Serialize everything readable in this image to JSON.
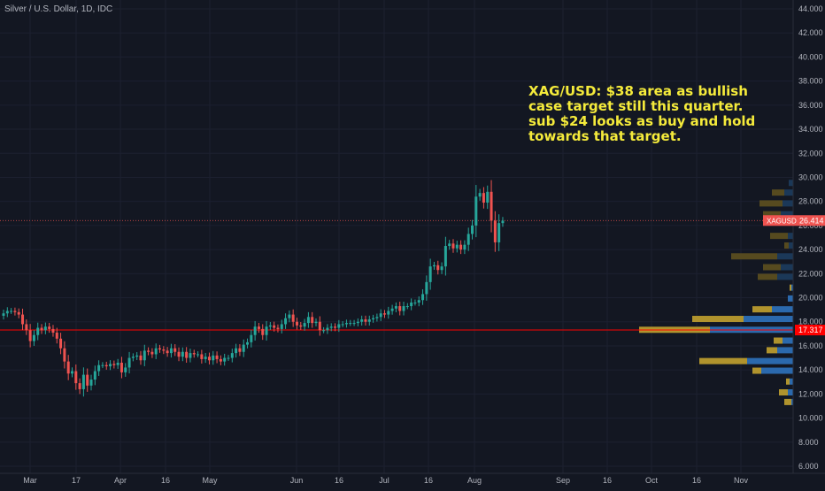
{
  "chart_data": {
    "type": "candlestick",
    "title": "Silver / U.S. Dollar, 1D, IDC",
    "annotation": "XAG/USD: $38 area as bullish case target still this quarter. sub $24 looks as buy and hold towards that target.",
    "ylim": [
      5.0,
      45.0
    ],
    "y_ticks": [
      "44.000",
      "42.000",
      "40.000",
      "38.000",
      "36.000",
      "34.000",
      "32.000",
      "30.000",
      "28.000",
      "26.000",
      "24.000",
      "22.000",
      "20.000",
      "18.000",
      "16.000",
      "14.000",
      "12.000",
      "10.000",
      "8.000",
      "6.000"
    ],
    "x_ticks": [
      "Mar",
      "17",
      "Apr",
      "16",
      "May",
      "Jun",
      "16",
      "Jul",
      "16",
      "Aug",
      "Sep",
      "16",
      "Oct",
      "16",
      "Nov"
    ],
    "price_label": {
      "symbol": "XAGUSD",
      "value": "26.414",
      "price": 26.414,
      "color": "#ef5350"
    },
    "level_label": {
      "value": "17.317",
      "price": 17.317,
      "color": "#ff0000"
    },
    "up_color": "#26a69a",
    "down_color": "#ef5350",
    "closes": [
      18.7,
      18.9,
      18.9,
      18.8,
      18.6,
      17.8,
      17.3,
      16.4,
      16.9,
      17.5,
      17.3,
      17.6,
      17.4,
      17.1,
      16.6,
      15.8,
      14.7,
      13.7,
      13.9,
      12.9,
      12.4,
      13.6,
      12.7,
      13.2,
      13.9,
      14.4,
      14.4,
      14.3,
      14.5,
      14.4,
      14.6,
      13.8,
      14.2,
      15.0,
      15.1,
      15.2,
      14.8,
      15.6,
      15.5,
      15.3,
      15.8,
      15.7,
      15.6,
      15.4,
      15.8,
      15.5,
      15.1,
      15.5,
      15.0,
      15.4,
      15.3,
      15.3,
      14.9,
      15.1,
      14.8,
      15.2,
      14.9,
      14.7,
      15.0,
      15.0,
      15.4,
      15.8,
      15.5,
      16.1,
      16.3,
      16.9,
      17.6,
      17.4,
      16.9,
      17.6,
      17.7,
      17.5,
      17.4,
      17.8,
      18.3,
      18.6,
      18.0,
      17.7,
      17.6,
      17.9,
      18.4,
      17.9,
      18.0,
      17.3,
      17.3,
      17.5,
      17.6,
      17.5,
      17.8,
      17.8,
      17.9,
      17.9,
      17.9,
      18.0,
      18.2,
      18.0,
      18.2,
      18.3,
      18.4,
      18.7,
      18.6,
      18.9,
      19.1,
      19.3,
      18.9,
      19.3,
      19.3,
      19.6,
      19.6,
      19.8,
      20.3,
      21.3,
      22.6,
      22.7,
      22.3,
      22.6,
      24.3,
      24.5,
      24.1,
      24.4,
      24.0,
      24.4,
      25.3,
      26.0,
      28.4,
      28.7,
      27.9,
      28.8,
      26.4,
      24.6,
      26.2,
      26.4
    ],
    "volume_profile": [
      {
        "price": 29.5,
        "buy": 0,
        "sell": 5
      },
      {
        "price": 28.7,
        "buy": 14,
        "sell": 10
      },
      {
        "price": 27.8,
        "buy": 26,
        "sell": 12
      },
      {
        "price": 26.9,
        "buy": 20,
        "sell": 14
      },
      {
        "price": 26.0,
        "buy": 0,
        "sell": 0
      },
      {
        "price": 25.1,
        "buy": 20,
        "sell": 6
      },
      {
        "price": 24.3,
        "buy": 5,
        "sell": 5
      },
      {
        "price": 23.4,
        "buy": 52,
        "sell": 18
      },
      {
        "price": 22.5,
        "buy": 20,
        "sell": 14
      },
      {
        "price": 21.7,
        "buy": 22,
        "sell": 18
      },
      {
        "price": 20.8,
        "buy": 2,
        "sell": 2
      },
      {
        "price": 19.9,
        "buy": 0,
        "sell": 6
      },
      {
        "price": 19.0,
        "buy": 22,
        "sell": 24
      },
      {
        "price": 18.2,
        "buy": 58,
        "sell": 56
      },
      {
        "price": 17.3,
        "buy": 80,
        "sell": 94
      },
      {
        "price": 16.4,
        "buy": 10,
        "sell": 12
      },
      {
        "price": 15.6,
        "buy": 12,
        "sell": 18
      },
      {
        "price": 14.7,
        "buy": 54,
        "sell": 52
      },
      {
        "price": 13.9,
        "buy": 10,
        "sell": 36
      },
      {
        "price": 13.0,
        "buy": 4,
        "sell": 4
      },
      {
        "price": 12.1,
        "buy": 10,
        "sell": 6
      },
      {
        "price": 11.3,
        "buy": 8,
        "sell": 2
      }
    ]
  }
}
